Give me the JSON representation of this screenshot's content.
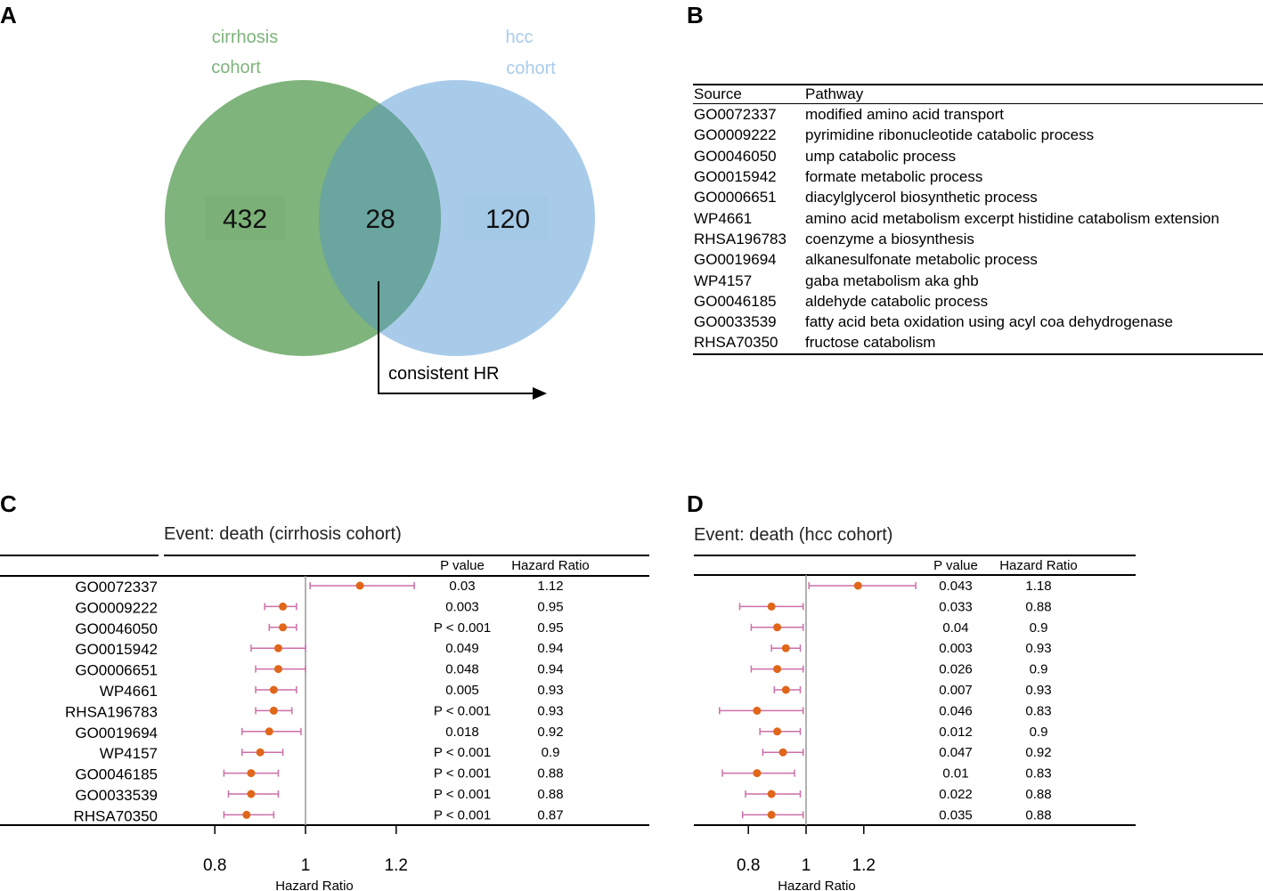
{
  "panels": {
    "a": "A",
    "b": "B",
    "c": "C",
    "d": "D"
  },
  "venn": {
    "left_label_1": "cirrhosis",
    "left_label_2": "cohort",
    "right_label_1": "hcc",
    "right_label_2": "cohort",
    "left_only": "432",
    "intersection": "28",
    "right_only": "120",
    "arrow_label": "consistent HR",
    "left_color": "#7fb47c",
    "right_color": "#a9cbea",
    "overlap_color": "#6aa59f"
  },
  "pathway_table": {
    "headers": [
      "Source",
      "Pathway"
    ],
    "rows": [
      [
        "GO0072337",
        "modified amino acid transport"
      ],
      [
        "GO0009222",
        "pyrimidine ribonucleotide catabolic process"
      ],
      [
        "GO0046050",
        "ump catabolic process"
      ],
      [
        "GO0015942",
        "formate metabolic process"
      ],
      [
        "GO0006651",
        "diacylglycerol biosynthetic process"
      ],
      [
        "WP4661",
        "amino acid metabolism excerpt histidine catabolism extension"
      ],
      [
        "RHSA196783",
        "coenzyme a biosynthesis"
      ],
      [
        "GO0019694",
        "alkanesulfonate metabolic process"
      ],
      [
        "WP4157",
        "gaba metabolism aka ghb"
      ],
      [
        "GO0046185",
        "aldehyde catabolic process"
      ],
      [
        "GO0033539",
        "fatty acid beta oxidation using acyl coa dehydrogenase"
      ],
      [
        "RHSA70350",
        "fructose catabolism"
      ]
    ]
  },
  "chart_data": [
    {
      "type": "forest",
      "panel": "C",
      "title": "Event: death (cirrhosis cohort)",
      "xlabel": "Hazard Ratio",
      "xlim": [
        0.8,
        1.2
      ],
      "xticks": [
        0.8,
        1,
        1.2
      ],
      "reference_line": 1,
      "col_headers": [
        "P value",
        "Hazard Ratio"
      ],
      "labels": [
        "GO0072337",
        "GO0009222",
        "GO0046050",
        "GO0015942",
        "GO0006651",
        "WP4661",
        "RHSA196783",
        "GO0019694",
        "WP4157",
        "GO0046185",
        "GO0033539",
        "RHSA70350"
      ],
      "hr": [
        1.12,
        0.95,
        0.95,
        0.94,
        0.94,
        0.93,
        0.93,
        0.92,
        0.9,
        0.88,
        0.88,
        0.87
      ],
      "hr_text": [
        "1.12",
        "0.95",
        "0.95",
        "0.94",
        "0.94",
        "0.93",
        "0.93",
        "0.92",
        "0.9",
        "0.88",
        "0.88",
        "0.87"
      ],
      "lower": [
        1.01,
        0.91,
        0.92,
        0.88,
        0.89,
        0.89,
        0.89,
        0.86,
        0.86,
        0.82,
        0.83,
        0.82
      ],
      "upper": [
        1.24,
        0.98,
        0.98,
        1.0,
        1.0,
        0.98,
        0.97,
        0.99,
        0.95,
        0.94,
        0.94,
        0.93
      ],
      "pvalues": [
        "0.03",
        "0.003",
        "P < 0.001",
        "0.049",
        "0.048",
        "0.005",
        "P < 0.001",
        "0.018",
        "P < 0.001",
        "P < 0.001",
        "P < 0.001",
        "P < 0.001"
      ],
      "point_color": "#e0661a",
      "ci_color": "#cc6fa8"
    },
    {
      "type": "forest",
      "panel": "D",
      "title": "Event: death (hcc cohort)",
      "xlabel": "Hazard Ratio",
      "xlim": [
        0.8,
        1.2
      ],
      "xticks": [
        0.8,
        1,
        1.2
      ],
      "reference_line": 1,
      "col_headers": [
        "P value",
        "Hazard Ratio"
      ],
      "labels": [
        "GO0072337",
        "GO0009222",
        "GO0046050",
        "GO0015942",
        "GO0006651",
        "WP4661",
        "RHSA196783",
        "GO0019694",
        "WP4157",
        "GO0046185",
        "GO0033539",
        "RHSA70350"
      ],
      "hr": [
        1.18,
        0.88,
        0.9,
        0.93,
        0.9,
        0.93,
        0.83,
        0.9,
        0.92,
        0.83,
        0.88,
        0.88
      ],
      "hr_text": [
        "1.18",
        "0.88",
        "0.9",
        "0.93",
        "0.9",
        "0.93",
        "0.83",
        "0.9",
        "0.92",
        "0.83",
        "0.88",
        "0.88"
      ],
      "lower": [
        1.01,
        0.77,
        0.81,
        0.88,
        0.81,
        0.89,
        0.7,
        0.84,
        0.85,
        0.71,
        0.79,
        0.78
      ],
      "upper": [
        1.38,
        0.99,
        0.99,
        0.98,
        0.99,
        0.98,
        0.99,
        0.98,
        0.99,
        0.96,
        0.98,
        0.99
      ],
      "pvalues": [
        "0.043",
        "0.033",
        "0.04",
        "0.003",
        "0.026",
        "0.007",
        "0.046",
        "0.012",
        "0.047",
        "0.01",
        "0.022",
        "0.035"
      ],
      "point_color": "#e0661a",
      "ci_color": "#cc6fa8"
    }
  ]
}
